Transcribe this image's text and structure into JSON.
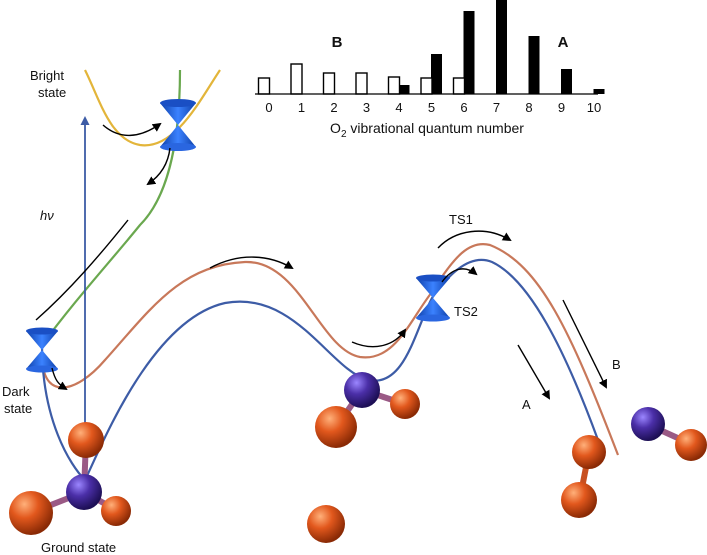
{
  "labels": {
    "bright_state": [
      "Bright",
      "state"
    ],
    "dark_state": [
      "Dark",
      "state"
    ],
    "ground_state": "Ground state",
    "photon": "hν",
    "ts1": "TS1",
    "ts2": "TS2",
    "channel_a": "A",
    "channel_b": "B"
  },
  "chart_data": {
    "type": "bar",
    "xlabel_prefix": "O",
    "xlabel_sub": "2",
    "xlabel_suffix": " vibrational quantum number",
    "ticks": [
      "0",
      "1",
      "2",
      "3",
      "4",
      "5",
      "6",
      "7",
      "8",
      "9",
      "10"
    ],
    "series": [
      {
        "name": "A",
        "style": "filled",
        "values": [
          0,
          0,
          0,
          0,
          0.09,
          0.4,
          0.83,
          0.96,
          0.58,
          0.25,
          0.05
        ]
      },
      {
        "name": "B",
        "style": "open",
        "values": [
          0.16,
          0.3,
          0.21,
          0.21,
          0.17,
          0.16,
          0.16,
          0,
          0,
          0,
          0
        ]
      }
    ],
    "legend_labels": {
      "B": "B",
      "A": "A"
    }
  },
  "colors": {
    "blue_curve": "#3d5ca6",
    "orange_curve": "#c8785a",
    "green_curve": "#6aa84f",
    "yellow_curve": "#e3b53a",
    "conical": "#1f5fd6",
    "oxygen": "#e2581d",
    "nitrogen": "#4b2fa8"
  }
}
